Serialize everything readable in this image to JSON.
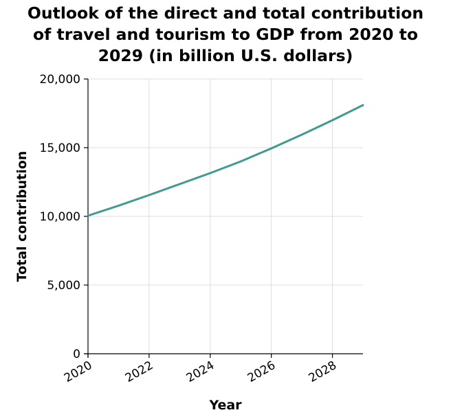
{
  "chart_data": {
    "type": "line",
    "title_lines": [
      "Outlook of the direct and total contribution",
      "of travel and tourism to GDP from 2020 to",
      "2029 (in billion U.S. dollars)"
    ],
    "xlabel": "Year",
    "ylabel": "Total contribution",
    "xlim": [
      2020,
      2029
    ],
    "ylim": [
      0,
      20000
    ],
    "x_ticks": [
      2020,
      2022,
      2024,
      2026,
      2028
    ],
    "y_ticks": [
      0,
      5000,
      10000,
      15000,
      20000
    ],
    "y_tick_labels": [
      "0",
      "5,000",
      "10,000",
      "15,000",
      "20,000"
    ],
    "grid": true,
    "series": [
      {
        "color": "#3f9a92",
        "x": [
          2020,
          2021,
          2022,
          2023,
          2024,
          2025,
          2026,
          2027,
          2028,
          2029
        ],
        "values": [
          10050,
          10780,
          11550,
          12350,
          13150,
          14000,
          14950,
          15950,
          17000,
          18100
        ]
      }
    ]
  }
}
